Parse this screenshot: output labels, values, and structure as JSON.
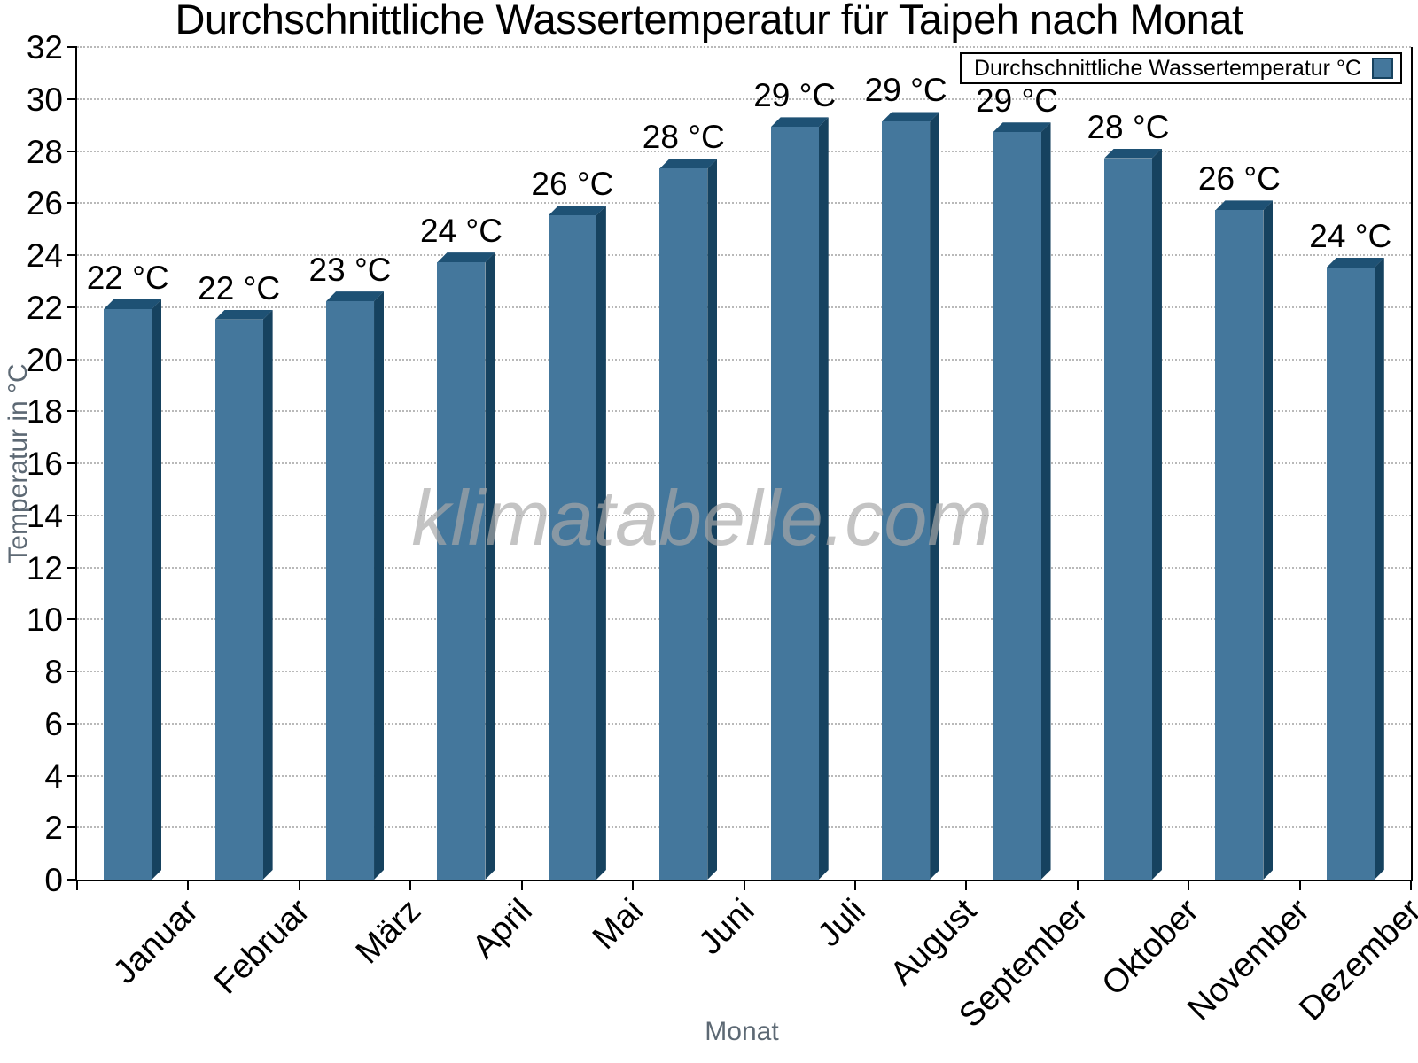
{
  "title": "Durchschnittliche Wassertemperatur für Taipeh nach Monat",
  "watermark": "klimatabelle.com",
  "legend": {
    "label": "Durchschnittliche Wassertemperatur °C"
  },
  "colors": {
    "bar_front": "#44779C",
    "bar_top": "#1E5174",
    "bar_side": "#16425F",
    "axis": "#000000",
    "grid": "#B9B9B9",
    "axis_title_gray": "#5D6974",
    "watermark_gray": "#A8A8A8"
  },
  "chart_data": {
    "type": "bar",
    "title": "Durchschnittliche Wassertemperatur für Taipeh nach Monat",
    "xlabel": "Monat",
    "ylabel": "Temperatur in °C",
    "ylim": [
      0,
      32
    ],
    "ytick_step": 2,
    "grid": "horizontal-dotted",
    "legend_position": "top-right",
    "legend_entry": "Durchschnittliche Wassertemperatur °C",
    "categories": [
      "Januar",
      "Februar",
      "März",
      "April",
      "Mai",
      "Juni",
      "Juli",
      "August",
      "September",
      "Oktober",
      "November",
      "Dezember"
    ],
    "values": [
      22.3,
      21.9,
      22.6,
      24.1,
      25.9,
      27.7,
      29.3,
      29.5,
      29.1,
      28.1,
      26.1,
      23.9
    ],
    "bar_labels": [
      "22 °C",
      "22 °C",
      "23 °C",
      "24 °C",
      "26 °C",
      "28 °C",
      "29 °C",
      "29 °C",
      "29 °C",
      "28 °C",
      "26 °C",
      "24 °C"
    ]
  }
}
